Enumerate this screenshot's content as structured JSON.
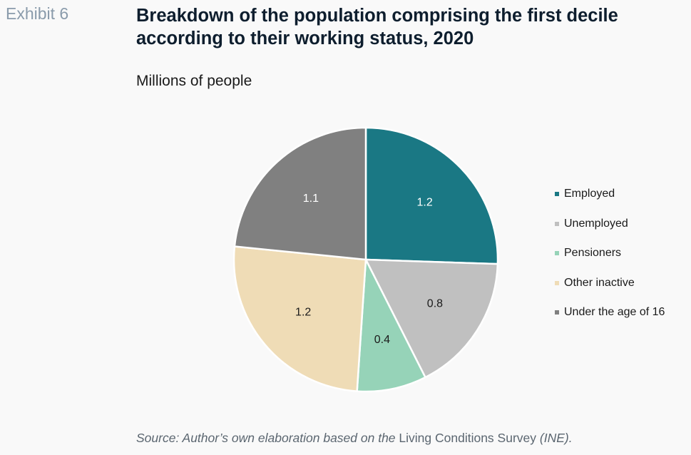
{
  "header": {
    "exhibit": "Exhibit 6",
    "title": "Breakdown of the population comprising the first decile according to their working status, 2020",
    "subtitle": "Millions of people"
  },
  "source": {
    "prefix": "Source: Author’s own elaboration based on the ",
    "survey": "Living Conditions Survey",
    "suffix": " (INE)."
  },
  "chart_data": {
    "type": "pie",
    "title": "Breakdown of the population comprising the first decile according to their working status, 2020",
    "subtitle": "Millions of people",
    "legend_position": "right",
    "slices": [
      {
        "label": "Employed",
        "value": 1.2,
        "display": "1.2",
        "color": "#1a7884",
        "text_color": "#ffffff"
      },
      {
        "label": "Unemployed",
        "value": 0.8,
        "display": "0.8",
        "color": "#c0c0c0",
        "text_color": "#1a1a1a"
      },
      {
        "label": "Pensioners",
        "value": 0.4,
        "display": "0.4",
        "color": "#96d3b8",
        "text_color": "#1a1a1a"
      },
      {
        "label": "Other inactive",
        "value": 1.2,
        "display": "1.2",
        "color": "#efdcb6",
        "text_color": "#1a1a1a"
      },
      {
        "label": "Under the age of 16",
        "value": 1.1,
        "display": "1.1",
        "color": "#808080",
        "text_color": "#ffffff"
      }
    ]
  }
}
